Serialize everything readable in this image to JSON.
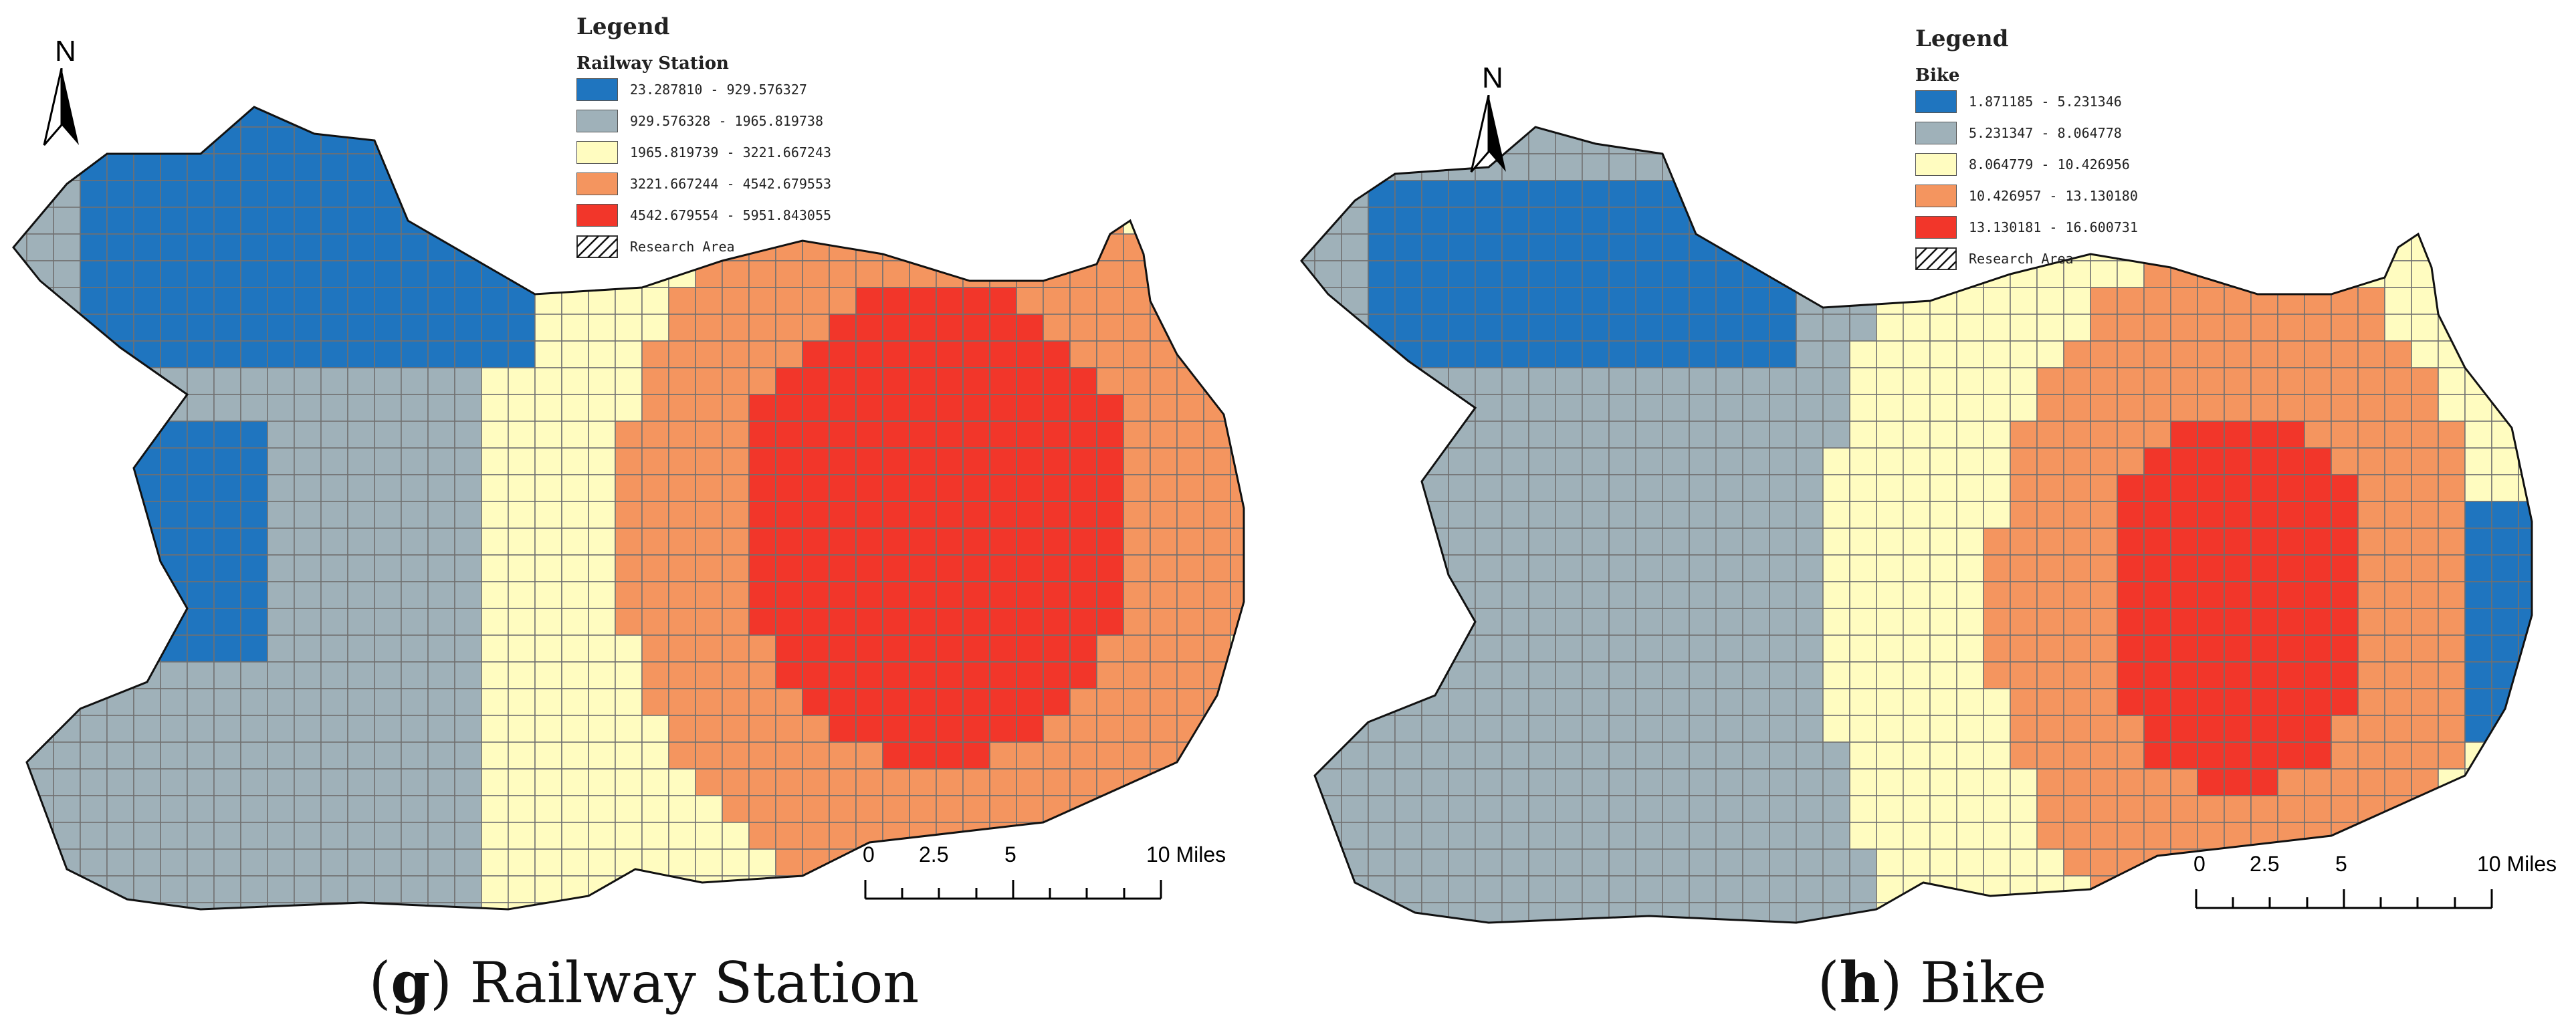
{
  "colors": {
    "class1": "#1f75bf",
    "class2": "#9fb1b9",
    "class3": "#fffcc0",
    "class4": "#f4955f",
    "class5": "#f2362a",
    "grid_line": "#707070",
    "outline": "#111111"
  },
  "north_arrow": {
    "letter": "N",
    "icon": "north-arrow-icon"
  },
  "panels": [
    {
      "id": "g",
      "caption": {
        "letter": "g",
        "text": "Railway Station"
      },
      "legend": {
        "title": "Legend",
        "layer": "Railway Station",
        "classes": [
          {
            "label": "23.287810 - 929.576327",
            "color": "#1f75bf"
          },
          {
            "label": "929.576328 - 1965.819738",
            "color": "#9fb1b9"
          },
          {
            "label": "1965.819739 - 3221.667243",
            "color": "#fffcc0"
          },
          {
            "label": "3221.667244 - 4542.679553",
            "color": "#f4955f"
          },
          {
            "label": "4542.679554 - 5951.843055",
            "color": "#f2362a"
          }
        ],
        "research_area": "Research Area"
      },
      "scale": {
        "ticks": [
          "0",
          "2.5",
          "5",
          "10 Miles"
        ]
      }
    },
    {
      "id": "h",
      "caption": {
        "letter": "h",
        "text": "Bike"
      },
      "legend": {
        "title": "Legend",
        "layer": "Bike",
        "classes": [
          {
            "label": "1.871185 - 5.231346",
            "color": "#1f75bf"
          },
          {
            "label": "5.231347 - 8.064778",
            "color": "#9fb1b9"
          },
          {
            "label": "8.064779 - 10.426956",
            "color": "#fffcc0"
          },
          {
            "label": "10.426957 - 13.130180",
            "color": "#f4955f"
          },
          {
            "label": "13.130181 - 16.600731",
            "color": "#f2362a"
          }
        ],
        "research_area": "Research Area"
      },
      "scale": {
        "ticks": [
          "0",
          "2.5",
          "5",
          "10 Miles"
        ]
      }
    }
  ]
}
